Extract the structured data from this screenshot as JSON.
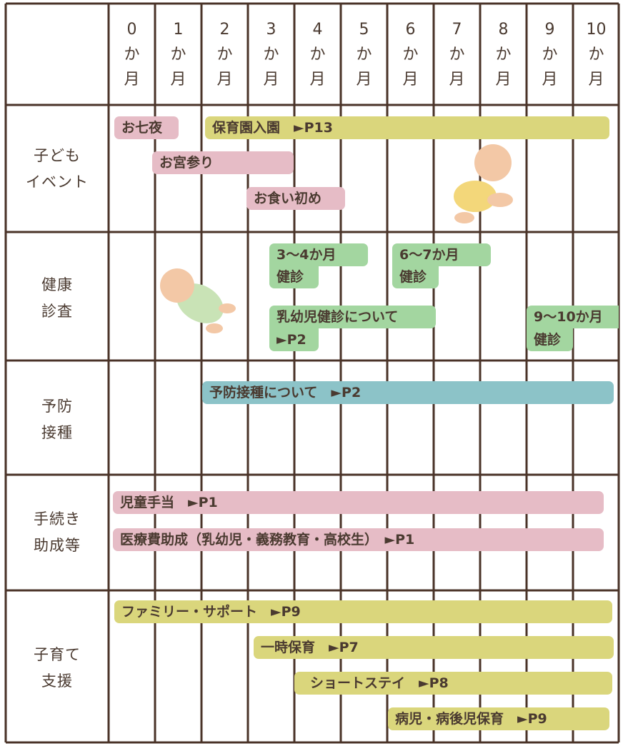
{
  "header": {
    "months": [
      "0",
      "1",
      "2",
      "3",
      "4",
      "5",
      "6",
      "7",
      "8",
      "9",
      "10"
    ],
    "unit_lines": [
      "か",
      "月"
    ]
  },
  "rows": [
    {
      "label_lines": [
        "子ども",
        "イベント"
      ],
      "items": [
        {
          "text": "お七夜"
        },
        {
          "text": "保育園入園　►P13"
        },
        {
          "text": "お宮参り"
        },
        {
          "text": "お食い初め"
        }
      ]
    },
    {
      "label_lines": [
        "健康",
        "診査"
      ],
      "items": [
        {
          "lines": [
            "3～4か月",
            "健診"
          ]
        },
        {
          "lines": [
            "6～7か月",
            "健診"
          ]
        },
        {
          "lines": [
            "乳幼児健診について",
            "►P2"
          ]
        },
        {
          "lines": [
            "9～10か月",
            "健診"
          ]
        }
      ]
    },
    {
      "label_lines": [
        "予防",
        "接種"
      ],
      "items": [
        {
          "text": "予防接種について　►P2"
        }
      ]
    },
    {
      "label_lines": [
        "手続き",
        "助成等"
      ],
      "items": [
        {
          "text": "児童手当　►P1"
        },
        {
          "text": "医療費助成（乳幼児・義務教育・高校生）　►P1"
        }
      ]
    },
    {
      "label_lines": [
        "子育て",
        "支援"
      ],
      "items": [
        {
          "text": "ファミリー・サポート　►P9"
        },
        {
          "text": "一時保育　►P7"
        },
        {
          "text": "ショートステイ　►P8"
        },
        {
          "text": "病児・病後児保育　►P9"
        }
      ]
    }
  ]
}
